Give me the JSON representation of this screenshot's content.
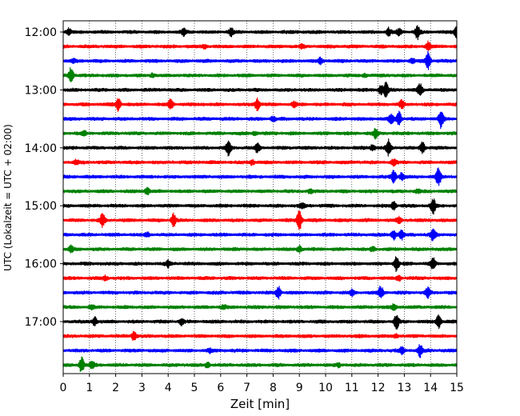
{
  "chart_data": {
    "type": "line",
    "title": "",
    "xlabel": "Zeit  [min]",
    "ylabel": "UTC (Lokalzeit = UTC + 02:00)",
    "xlim": [
      0,
      15
    ],
    "x_ticks": [
      0,
      1,
      2,
      3,
      4,
      5,
      6,
      7,
      8,
      9,
      10,
      11,
      12,
      13,
      14,
      15
    ],
    "x_tick_labels": [
      "0",
      "1",
      "2",
      "3",
      "4",
      "5",
      "6",
      "7",
      "8",
      "9",
      "10",
      "11",
      "12",
      "13",
      "14",
      "15"
    ],
    "y_tick_labels": [
      "12:00",
      "13:00",
      "14:00",
      "15:00",
      "16:00",
      "17:00"
    ],
    "grid": {
      "x": true,
      "y": false,
      "style": "dotted"
    },
    "legend": "none",
    "color_cycle": [
      "#000000",
      "#ff0000",
      "#0000ff",
      "#008000"
    ],
    "series": [
      {
        "start": "12:00",
        "events": [
          [
            0.2,
            0.5
          ],
          [
            4.6,
            0.5
          ],
          [
            6.4,
            0.6
          ],
          [
            12.4,
            0.6
          ],
          [
            12.8,
            0.5
          ],
          [
            13.5,
            1.1
          ],
          [
            15.0,
            0.9
          ]
        ]
      },
      {
        "start": "12:15",
        "events": [
          [
            5.4,
            0.3
          ],
          [
            9.1,
            0.3
          ],
          [
            13.9,
            0.7
          ]
        ]
      },
      {
        "start": "12:30",
        "events": [
          [
            0.4,
            0.2
          ],
          [
            9.8,
            0.5
          ],
          [
            13.3,
            0.4
          ],
          [
            13.9,
            1.4
          ]
        ]
      },
      {
        "start": "12:45",
        "events": [
          [
            0.3,
            1.3
          ],
          [
            3.4,
            0.3
          ],
          [
            11.5,
            0.3
          ]
        ]
      },
      {
        "start": "13:00",
        "events": [
          [
            12.1,
            0.7
          ],
          [
            12.3,
            1.2
          ],
          [
            13.6,
            1.0
          ]
        ]
      },
      {
        "start": "13:15",
        "events": [
          [
            2.1,
            1.0
          ],
          [
            4.1,
            0.8
          ],
          [
            7.4,
            1.0
          ],
          [
            8.8,
            0.4
          ],
          [
            12.9,
            0.6
          ]
        ]
      },
      {
        "start": "13:30",
        "events": [
          [
            8.0,
            0.4
          ],
          [
            12.5,
            0.8
          ],
          [
            12.8,
            1.1
          ],
          [
            14.4,
            1.5
          ]
        ]
      },
      {
        "start": "13:45",
        "events": [
          [
            0.8,
            0.3
          ],
          [
            7.3,
            0.3
          ],
          [
            11.9,
            0.7
          ]
        ]
      },
      {
        "start": "14:00",
        "events": [
          [
            6.3,
            1.2
          ],
          [
            7.4,
            0.7
          ],
          [
            11.8,
            0.5
          ],
          [
            12.4,
            1.3
          ],
          [
            13.7,
            0.9
          ]
        ]
      },
      {
        "start": "14:15",
        "events": [
          [
            0.5,
            0.3
          ],
          [
            7.2,
            0.4
          ],
          [
            12.6,
            0.5
          ]
        ]
      },
      {
        "start": "14:30",
        "events": [
          [
            12.6,
            1.0
          ],
          [
            12.9,
            0.6
          ],
          [
            14.3,
            1.4
          ]
        ]
      },
      {
        "start": "14:45",
        "events": [
          [
            3.2,
            0.5
          ],
          [
            9.4,
            0.3
          ],
          [
            13.5,
            0.3
          ]
        ]
      },
      {
        "start": "15:00",
        "events": [
          [
            9.1,
            0.4
          ],
          [
            12.6,
            0.7
          ],
          [
            14.1,
            1.2
          ]
        ]
      },
      {
        "start": "15:15",
        "events": [
          [
            1.5,
            1.1
          ],
          [
            4.2,
            1.1
          ],
          [
            9.0,
            1.8
          ],
          [
            12.8,
            0.5
          ]
        ]
      },
      {
        "start": "15:30",
        "events": [
          [
            3.2,
            0.3
          ],
          [
            12.6,
            0.8
          ],
          [
            12.9,
            0.7
          ],
          [
            14.1,
            1.0
          ]
        ]
      },
      {
        "start": "15:45",
        "events": [
          [
            0.3,
            0.5
          ],
          [
            9.0,
            0.6
          ],
          [
            11.8,
            0.3
          ]
        ]
      },
      {
        "start": "16:00",
        "events": [
          [
            4.0,
            0.5
          ],
          [
            12.7,
            1.2
          ],
          [
            14.1,
            1.0
          ]
        ]
      },
      {
        "start": "16:15",
        "events": [
          [
            1.6,
            0.3
          ],
          [
            12.8,
            0.4
          ]
        ]
      },
      {
        "start": "16:30",
        "events": [
          [
            8.2,
            1.0
          ],
          [
            11.0,
            0.5
          ],
          [
            12.1,
            1.0
          ],
          [
            13.9,
            0.8
          ]
        ]
      },
      {
        "start": "16:45",
        "events": [
          [
            1.1,
            0.3
          ],
          [
            6.1,
            0.3
          ],
          [
            12.6,
            0.5
          ]
        ]
      },
      {
        "start": "17:00",
        "events": [
          [
            1.2,
            0.7
          ],
          [
            4.5,
            0.5
          ],
          [
            12.7,
            1.1
          ],
          [
            14.3,
            1.1
          ]
        ]
      },
      {
        "start": "17:15",
        "events": [
          [
            2.7,
            0.8
          ],
          [
            12.7,
            0.3
          ]
        ]
      },
      {
        "start": "17:30",
        "events": [
          [
            5.6,
            0.3
          ],
          [
            12.9,
            0.5
          ],
          [
            13.6,
            1.0
          ]
        ]
      },
      {
        "start": "17:45",
        "events": [
          [
            0.7,
            1.2
          ],
          [
            1.1,
            0.6
          ],
          [
            5.5,
            0.4
          ],
          [
            10.5,
            0.3
          ]
        ]
      }
    ]
  }
}
